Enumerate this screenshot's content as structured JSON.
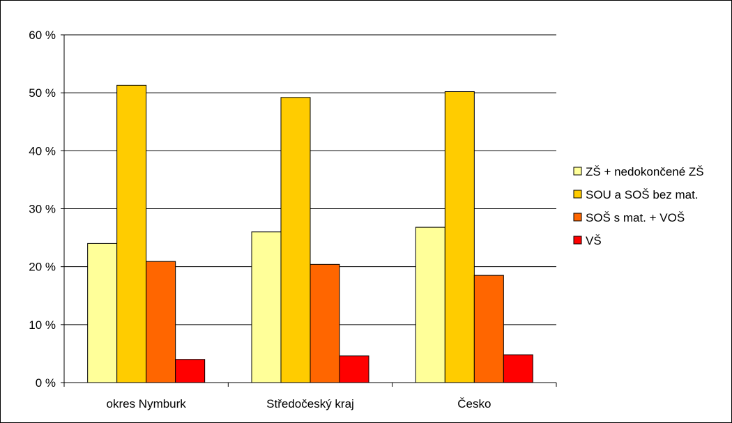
{
  "chart_data": {
    "type": "bar",
    "title": "",
    "xlabel": "",
    "ylabel": "",
    "categories": [
      "okres Nymburk",
      "Středočeský kraj",
      "Česko"
    ],
    "series": [
      {
        "name": "ZŠ + nedokončené ZŠ",
        "color": "#FFFF99",
        "values": [
          24.0,
          26.0,
          26.8
        ]
      },
      {
        "name": "SOU a SOŠ bez mat.",
        "color": "#FFCC00",
        "values": [
          51.3,
          49.2,
          50.2
        ]
      },
      {
        "name": "SOŠ s mat. + VOŠ",
        "color": "#FF6600",
        "values": [
          20.9,
          20.4,
          18.5
        ]
      },
      {
        "name": "VŠ",
        "color": "#FF0000",
        "values": [
          4.0,
          4.6,
          4.8
        ]
      }
    ],
    "ylim": [
      0,
      60
    ],
    "yticks": [
      0,
      10,
      20,
      30,
      40,
      50,
      60
    ],
    "ytick_labels": [
      "0 %",
      "10 %",
      "20 %",
      "30 %",
      "40 %",
      "50 %",
      "60 %"
    ],
    "grid": true,
    "legend_position": "right"
  }
}
